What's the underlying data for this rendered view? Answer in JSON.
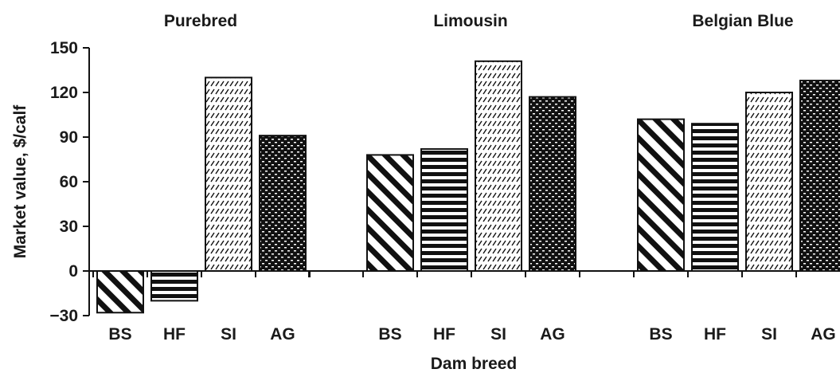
{
  "chart_data": {
    "type": "bar",
    "xlabel": "Dam breed",
    "ylabel": "Market value, $/calf",
    "ylim": [
      -30,
      150
    ],
    "yticks": [
      -30,
      0,
      30,
      60,
      90,
      120,
      150
    ],
    "ytick_labels": [
      "−30",
      "0",
      "30",
      "60",
      "90",
      "120",
      "150"
    ],
    "groups": [
      {
        "title": "Purebred",
        "categories": [
          "BS",
          "HF",
          "SI",
          "AG"
        ],
        "values": [
          -28,
          -20,
          130,
          91
        ]
      },
      {
        "title": "Limousin",
        "categories": [
          "BS",
          "HF",
          "SI",
          "AG"
        ],
        "values": [
          78,
          82,
          141,
          117
        ]
      },
      {
        "title": "Belgian Blue",
        "categories": [
          "BS",
          "HF",
          "SI",
          "AG"
        ],
        "values": [
          102,
          99,
          120,
          128
        ]
      }
    ],
    "category_patterns": {
      "BS": "diagonal-stripes",
      "HF": "horizontal-stripes",
      "SI": "light-dashed-diagonal",
      "AG": "dark-dotted"
    },
    "bar_color": "#111111",
    "grid": false,
    "legend": "none"
  }
}
